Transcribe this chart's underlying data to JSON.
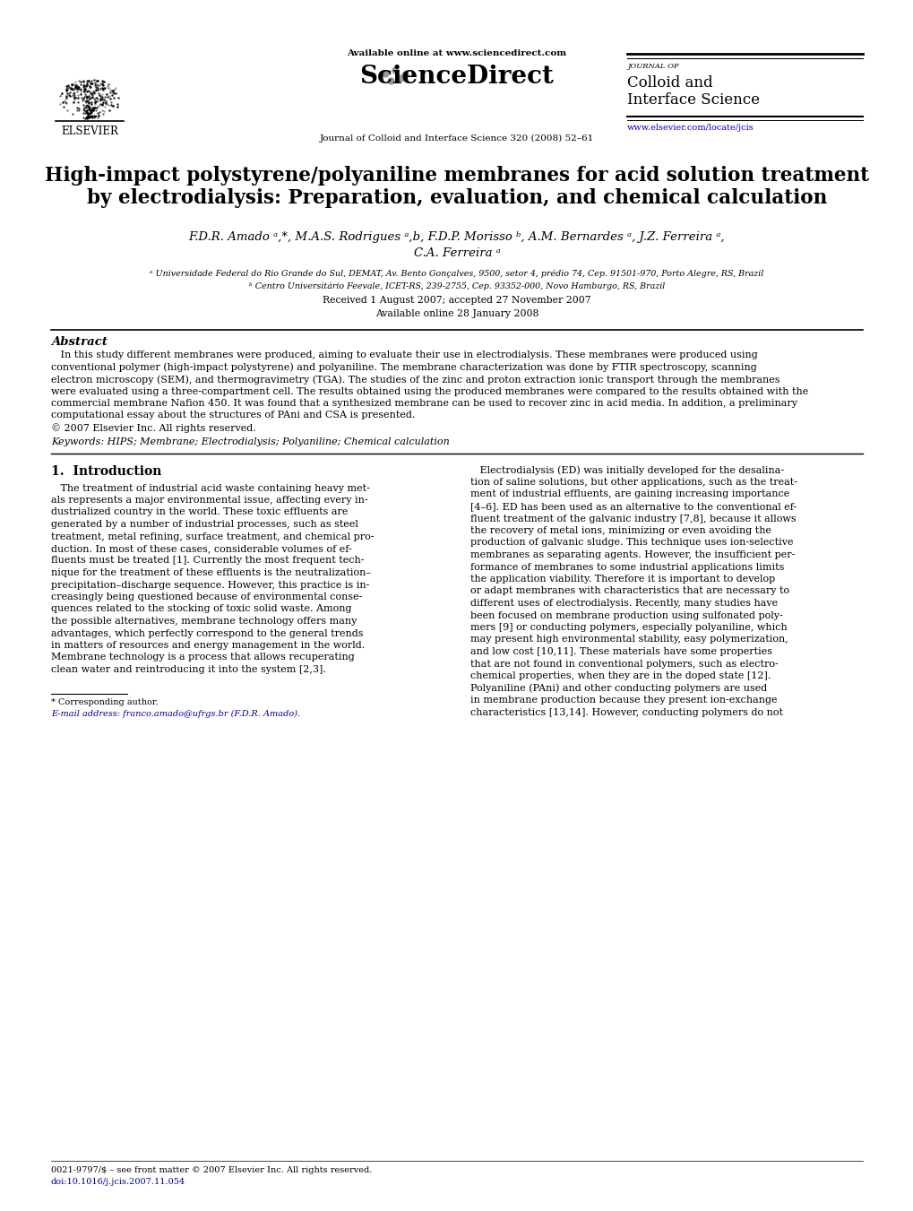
{
  "bg_color": "#ffffff",
  "page_width": 10.2,
  "page_height": 13.51,
  "header": {
    "available_online": "Available online at www.sciencedirect.com",
    "journal_line": "Journal of Colloid and Interface Science 320 (2008) 52–61",
    "journal_name_small": "JOURNAL OF",
    "journal_name_line1": "Colloid and",
    "journal_name_line2": "Interface Science",
    "elsevier_text": "ELSEVIER",
    "website": "www.elsevier.com/locate/jcis"
  },
  "title_line1": "High-impact polystyrene/polyaniline membranes for acid solution treatment",
  "title_line2": "by electrodialysis: Preparation, evaluation, and chemical calculation",
  "authors_line1": "F.D.R. Amado ᵃ,*, M.A.S. Rodrigues ᵃ,b, F.D.P. Morisso ᵇ, A.M. Bernardes ᵃ, J.Z. Ferreira ᵃ,",
  "authors_line2": "C.A. Ferreira ᵃ",
  "affil_a": "ᵃ Universidade Federal do Rio Grande do Sul, DEMAT, Av. Bento Gonçalves, 9500, setor 4, prédio 74, Cep. 91501-970, Porto Alegre, RS, Brazil",
  "affil_b": "ᵇ Centro Universitário Feevale, ICET-RS, 239-2755, Cep. 93352-000, Novo Hamburgo, RS, Brazil",
  "received": "Received 1 August 2007; accepted 27 November 2007",
  "available": "Available online 28 January 2008",
  "abstract_title": "Abstract",
  "abstract_text_lines": [
    "   In this study different membranes were produced, aiming to evaluate their use in electrodialysis. These membranes were produced using",
    "conventional polymer (high-impact polystyrene) and polyaniline. The membrane characterization was done by FTIR spectroscopy, scanning",
    "electron microscopy (SEM), and thermogravimetry (TGA). The studies of the zinc and proton extraction ionic transport through the membranes",
    "were evaluated using a three-compartment cell. The results obtained using the produced membranes were compared to the results obtained with the",
    "commercial membrane Nafion 450. It was found that a synthesized membrane can be used to recover zinc in acid media. In addition, a preliminary",
    "computational essay about the structures of PAni and CSA is presented.",
    "© 2007 Elsevier Inc. All rights reserved."
  ],
  "keywords": "Keywords: HIPS; Membrane; Electrodialysis; Polyaniline; Chemical calculation",
  "section1_title": "1.  Introduction",
  "left_col_lines": [
    "   The treatment of industrial acid waste containing heavy met-",
    "als represents a major environmental issue, affecting every in-",
    "dustrialized country in the world. These toxic effluents are",
    "generated by a number of industrial processes, such as steel",
    "treatment, metal refining, surface treatment, and chemical pro-",
    "duction. In most of these cases, considerable volumes of ef-",
    "fluents must be treated [1]. Currently the most frequent tech-",
    "nique for the treatment of these effluents is the neutralization–",
    "precipitation–discharge sequence. However, this practice is in-",
    "creasingly being questioned because of environmental conse-",
    "quences related to the stocking of toxic solid waste. Among",
    "the possible alternatives, membrane technology offers many",
    "advantages, which perfectly correspond to the general trends",
    "in matters of resources and energy management in the world.",
    "Membrane technology is a process that allows recuperating",
    "clean water and reintroducing it into the system [2,3]."
  ],
  "right_col_lines": [
    "   Electrodialysis (ED) was initially developed for the desalina-",
    "tion of saline solutions, but other applications, such as the treat-",
    "ment of industrial effluents, are gaining increasing importance",
    "[4–6]. ED has been used as an alternative to the conventional ef-",
    "fluent treatment of the galvanic industry [7,8], because it allows",
    "the recovery of metal ions, minimizing or even avoiding the",
    "production of galvanic sludge. This technique uses ion-selective",
    "membranes as separating agents. However, the insufficient per-",
    "formance of membranes to some industrial applications limits",
    "the application viability. Therefore it is important to develop",
    "or adapt membranes with characteristics that are necessary to",
    "different uses of electrodialysis. Recently, many studies have",
    "been focused on membrane production using sulfonated poly-",
    "mers [9] or conducting polymers, especially polyaniline, which",
    "may present high environmental stability, easy polymerization,",
    "and low cost [10,11]. These materials have some properties",
    "that are not found in conventional polymers, such as electro-",
    "chemical properties, when they are in the doped state [12].",
    "Polyaniline (PAni) and other conducting polymers are used",
    "in membrane production because they present ion-exchange",
    "characteristics [13,14]. However, conducting polymers do not"
  ],
  "footnote_star": "* Corresponding author.",
  "footnote_email": "E-mail address: franco.amado@ufrgs.br (F.D.R. Amado).",
  "footer_issn": "0021-9797/$ – see front matter © 2007 Elsevier Inc. All rights reserved.",
  "footer_doi": "doi:10.1016/j.jcis.2007.11.054"
}
